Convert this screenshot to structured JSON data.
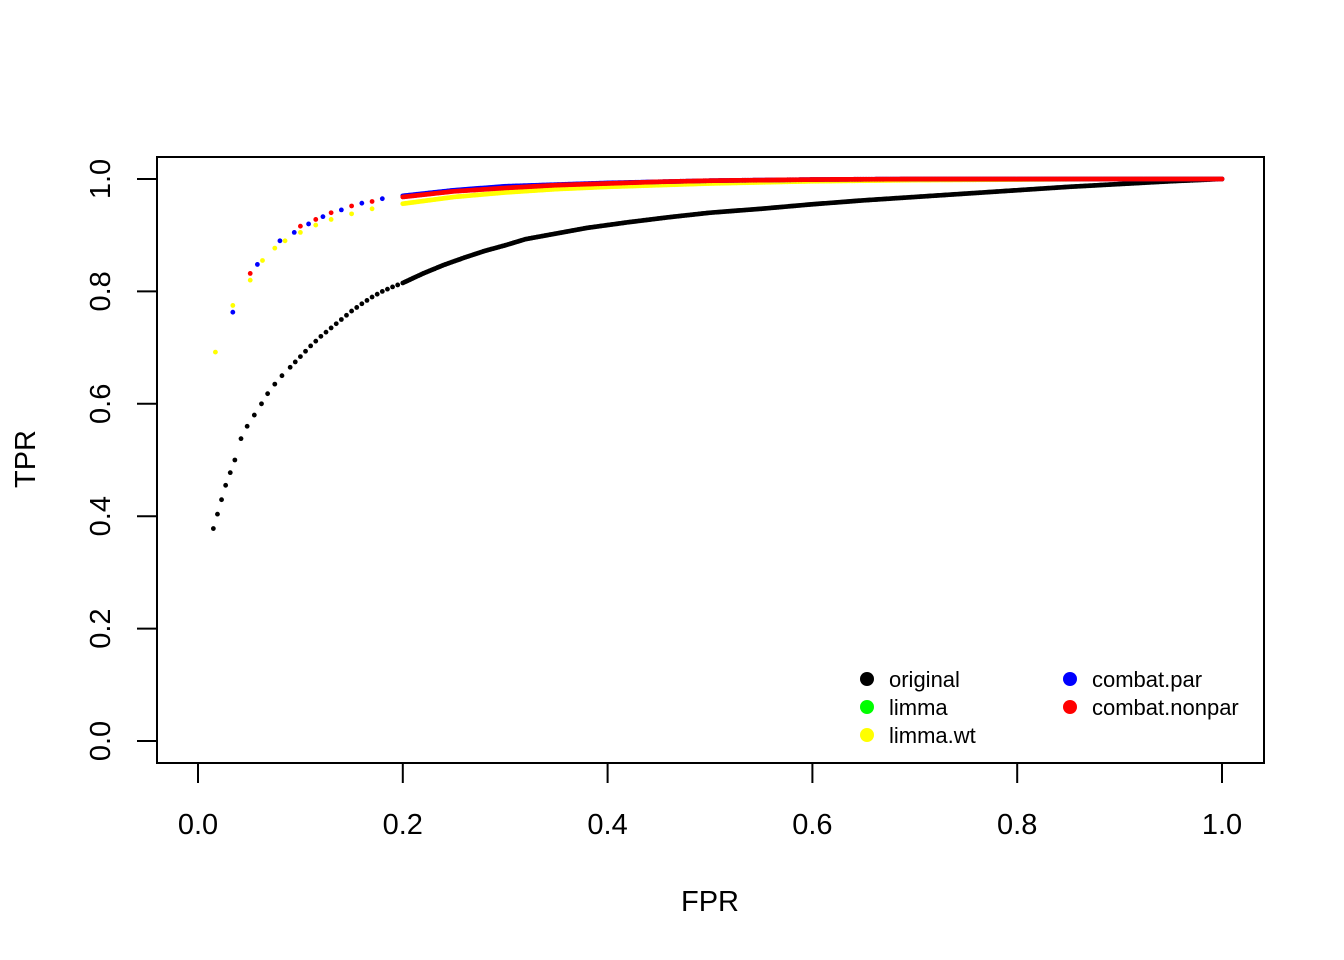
{
  "chart_data": {
    "type": "scatter",
    "title": "",
    "xlabel": "FPR",
    "ylabel": "TPR",
    "xlim": [
      0.0,
      1.0
    ],
    "ylim": [
      0.0,
      1.0
    ],
    "x_ticks": [
      "0.0",
      "0.2",
      "0.4",
      "0.6",
      "0.8",
      "1.0"
    ],
    "y_ticks": [
      "0.0",
      "0.2",
      "0.4",
      "0.6",
      "0.8",
      "1.0"
    ],
    "grid": false,
    "legend_position": "bottom-right",
    "series": [
      {
        "name": "original",
        "color": "#000000",
        "x": [
          0.015,
          0.027,
          0.036,
          0.042,
          0.048,
          0.055,
          0.062,
          0.068,
          0.075,
          0.082,
          0.09,
          0.1,
          0.11,
          0.12,
          0.13,
          0.14,
          0.15,
          0.16,
          0.17,
          0.18,
          0.19,
          0.2,
          0.22,
          0.24,
          0.26,
          0.28,
          0.3,
          0.32,
          0.35,
          0.38,
          0.42,
          0.46,
          0.5,
          0.55,
          0.6,
          0.65,
          0.7,
          0.75,
          0.8,
          0.85,
          0.9,
          0.95,
          1.0
        ],
        "y": [
          0.378,
          0.455,
          0.5,
          0.538,
          0.56,
          0.58,
          0.6,
          0.618,
          0.635,
          0.65,
          0.665,
          0.684,
          0.703,
          0.72,
          0.735,
          0.75,
          0.765,
          0.778,
          0.79,
          0.8,
          0.808,
          0.815,
          0.832,
          0.847,
          0.86,
          0.872,
          0.882,
          0.893,
          0.903,
          0.913,
          0.923,
          0.932,
          0.94,
          0.947,
          0.955,
          0.962,
          0.968,
          0.974,
          0.98,
          0.986,
          0.991,
          0.996,
          1.0
        ]
      },
      {
        "name": "limma",
        "color": "#00ff00",
        "x": [],
        "y": []
      },
      {
        "name": "limma.wt",
        "color": "#ffff00",
        "x": [
          0.017,
          0.034,
          0.051,
          0.063,
          0.075,
          0.085,
          0.1,
          0.115,
          0.13,
          0.15,
          0.17,
          0.2,
          0.25,
          0.3,
          0.35,
          0.4,
          0.5,
          0.6,
          0.7,
          0.8,
          0.9,
          1.0
        ],
        "y": [
          0.692,
          0.775,
          0.82,
          0.855,
          0.877,
          0.89,
          0.905,
          0.918,
          0.928,
          0.938,
          0.947,
          0.956,
          0.968,
          0.976,
          0.982,
          0.986,
          0.992,
          0.996,
          0.998,
          0.999,
          1.0,
          1.0
        ]
      },
      {
        "name": "combat.par",
        "color": "#0000ff",
        "x": [
          0.034,
          0.058,
          0.08,
          0.094,
          0.108,
          0.122,
          0.14,
          0.16,
          0.18,
          0.2,
          0.25,
          0.3,
          0.35,
          0.4,
          0.5,
          0.6,
          0.7,
          0.8,
          0.9,
          1.0
        ],
        "y": [
          0.763,
          0.848,
          0.89,
          0.905,
          0.92,
          0.933,
          0.945,
          0.957,
          0.965,
          0.97,
          0.98,
          0.987,
          0.99,
          0.993,
          0.997,
          0.999,
          1.0,
          1.0,
          1.0,
          1.0
        ],
        "x_ref": "",
        "y_ref": ""
      },
      {
        "name": "combat.nonpar",
        "color": "#ff0000",
        "x": [
          0.051,
          0.1,
          0.115,
          0.13,
          0.15,
          0.17,
          0.2,
          0.25,
          0.3,
          0.35,
          0.4,
          0.45,
          0.5,
          0.55,
          0.6,
          0.7,
          0.8,
          0.9,
          1.0
        ],
        "y": [
          0.832,
          0.916,
          0.928,
          0.94,
          0.952,
          0.96,
          0.968,
          0.978,
          0.984,
          0.989,
          0.992,
          0.995,
          0.997,
          0.998,
          0.999,
          1.0,
          1.0,
          1.0,
          1.0
        ]
      }
    ]
  }
}
